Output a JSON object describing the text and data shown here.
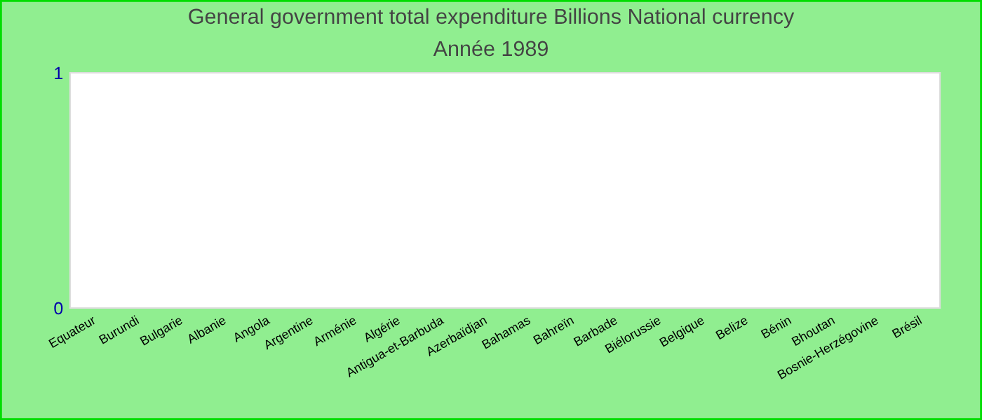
{
  "chart_data": {
    "type": "bar",
    "title": "General government total expenditure Billions National currency",
    "subtitle": "Année 1989",
    "categories": [
      "Equateur",
      "Burundi",
      "Bulgarie",
      "Albanie",
      "Angola",
      "Argentine",
      "Arménie",
      "Algérie",
      "Antigua-et-Barbuda",
      "Azerbaïdjan",
      "Bahamas",
      "Bahreïn",
      "Barbade",
      "Biélorussie",
      "Belgique",
      "Belize",
      "Bénin",
      "Bhoutan",
      "Bosnie-Herzégovine",
      "Brésil"
    ],
    "values": [
      null,
      null,
      null,
      null,
      null,
      null,
      null,
      null,
      null,
      null,
      null,
      null,
      null,
      null,
      null,
      null,
      null,
      null,
      null,
      null
    ],
    "ylim": [
      0,
      1
    ],
    "yticks": [
      0,
      1
    ],
    "grid": false
  }
}
